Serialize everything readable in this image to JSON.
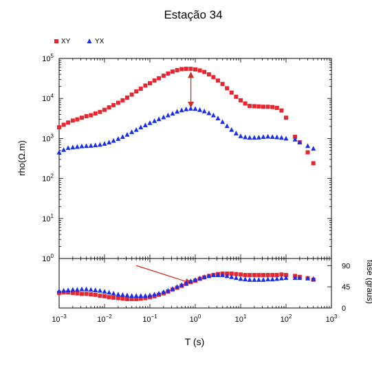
{
  "chart_data": [
    {
      "type": "scatter",
      "panel": "resistivity",
      "title": "Estação 34",
      "xlabel": "T (s)",
      "ylabel": "rho(Ω.m)",
      "xscale": "log",
      "yscale": "log",
      "xlim": [
        0.001,
        1000
      ],
      "ylim": [
        1,
        100000
      ],
      "grid": false,
      "legend_position": "top-left, above plot",
      "y_ticks": [
        1,
        10,
        100,
        1000,
        10000,
        100000
      ],
      "y_tick_labels": [
        {
          "base": "10",
          "exp": "0"
        },
        {
          "base": "10",
          "exp": "1"
        },
        {
          "base": "10",
          "exp": "2"
        },
        {
          "base": "10",
          "exp": "3"
        },
        {
          "base": "10",
          "exp": "4"
        },
        {
          "base": "10",
          "exp": "5"
        }
      ],
      "annotations": [
        {
          "kind": "double-arrow",
          "x": 0.8,
          "y_from": 6000,
          "y_to": 45000,
          "color": "#c83228"
        }
      ],
      "series": [
        {
          "name": "XY",
          "marker": "square",
          "color": "#e8262f",
          "x": [
            0.001,
            0.00126,
            0.00158,
            0.002,
            0.00251,
            0.00316,
            0.00398,
            0.00501,
            0.0063,
            0.00794,
            0.01,
            0.0126,
            0.0158,
            0.02,
            0.0251,
            0.0316,
            0.0398,
            0.0501,
            0.063,
            0.0794,
            0.1,
            0.126,
            0.158,
            0.2,
            0.251,
            0.316,
            0.398,
            0.501,
            0.63,
            0.794,
            1,
            1.26,
            1.58,
            2,
            2.51,
            3.16,
            3.98,
            5.01,
            6.3,
            7.94,
            10,
            12.6,
            15.8,
            20,
            25.1,
            31.6,
            39.8,
            50.1,
            63,
            79.4,
            100,
            158,
            200,
            300,
            400
          ],
          "y": [
            1900,
            2200,
            2500,
            2800,
            3000,
            3300,
            3600,
            3800,
            4200,
            4600,
            5200,
            6000,
            6800,
            7800,
            9000,
            10500,
            12500,
            15000,
            17500,
            21000,
            24000,
            28000,
            32000,
            37000,
            42000,
            47000,
            51000,
            54000,
            55000,
            55000,
            53000,
            50000,
            46000,
            40000,
            34000,
            28000,
            23000,
            18000,
            14000,
            11000,
            9000,
            7500,
            6500,
            6400,
            6300,
            6200,
            6200,
            6100,
            5800,
            5000,
            3300,
            1100,
            800,
            450,
            240
          ]
        },
        {
          "name": "YX",
          "marker": "triangle",
          "color": "#1a2fe6",
          "x": [
            0.001,
            0.00126,
            0.00158,
            0.002,
            0.00251,
            0.00316,
            0.00398,
            0.00501,
            0.0063,
            0.00794,
            0.01,
            0.0126,
            0.0158,
            0.02,
            0.0251,
            0.0316,
            0.0398,
            0.0501,
            0.063,
            0.0794,
            0.1,
            0.126,
            0.158,
            0.2,
            0.251,
            0.316,
            0.398,
            0.501,
            0.63,
            0.794,
            1,
            1.26,
            1.58,
            2,
            2.51,
            3.16,
            3.98,
            5.01,
            6.3,
            7.94,
            10,
            12.6,
            15.8,
            20,
            25.1,
            31.6,
            39.8,
            50.1,
            63,
            79.4,
            100,
            158,
            200,
            300,
            400
          ],
          "y": [
            450,
            520,
            580,
            600,
            620,
            640,
            650,
            660,
            680,
            700,
            740,
            800,
            880,
            980,
            1100,
            1250,
            1450,
            1650,
            1900,
            2150,
            2450,
            2750,
            3050,
            3400,
            3800,
            4200,
            4700,
            5100,
            5400,
            5600,
            5500,
            5200,
            4800,
            4300,
            3800,
            3200,
            2600,
            2050,
            1650,
            1350,
            1150,
            1080,
            1050,
            1050,
            1060,
            1100,
            1120,
            1100,
            1080,
            1050,
            1000,
            950,
            800,
            650,
            560
          ]
        }
      ]
    },
    {
      "type": "scatter",
      "panel": "phase",
      "xlabel": "T (s)",
      "ylabel": "fase (graus)",
      "xscale": "log",
      "xlim": [
        0.001,
        1000
      ],
      "ylim": [
        0,
        105
      ],
      "y_ticks": [
        0,
        45,
        90
      ],
      "x_ticks": [
        0.001,
        0.01,
        0.1,
        1,
        10,
        100,
        1000
      ],
      "x_tick_labels": [
        {
          "base": "10",
          "exp": "−3"
        },
        {
          "base": "10",
          "exp": "−2"
        },
        {
          "base": "10",
          "exp": "−1"
        },
        {
          "base": "10",
          "exp": "0"
        },
        {
          "base": "10",
          "exp": "1"
        },
        {
          "base": "10",
          "exp": "2"
        },
        {
          "base": "10",
          "exp": "3"
        }
      ],
      "grid": false,
      "annotations": [
        {
          "kind": "arrow",
          "x_from": 0.05,
          "y_from": 90,
          "x_to": 0.8,
          "y_to": 53,
          "color": "#c83228"
        }
      ],
      "series": [
        {
          "name": "XY",
          "marker": "square",
          "color": "#e8262f",
          "x": [
            0.001,
            0.00126,
            0.00158,
            0.002,
            0.00251,
            0.00316,
            0.00398,
            0.00501,
            0.0063,
            0.00794,
            0.01,
            0.0126,
            0.0158,
            0.02,
            0.0251,
            0.0316,
            0.0398,
            0.0501,
            0.063,
            0.0794,
            0.1,
            0.126,
            0.158,
            0.2,
            0.251,
            0.316,
            0.398,
            0.501,
            0.63,
            0.794,
            1,
            1.26,
            1.58,
            2,
            2.51,
            3.16,
            3.98,
            5.01,
            6.3,
            7.94,
            10,
            12.6,
            15.8,
            20,
            25.1,
            31.6,
            39.8,
            50.1,
            63,
            79.4,
            100,
            158,
            200,
            300,
            400
          ],
          "y": [
            32,
            33,
            33,
            32,
            31,
            30,
            30,
            29,
            28,
            26,
            25,
            23,
            22,
            21,
            20,
            19,
            19,
            19,
            20,
            21,
            23,
            25,
            28,
            31,
            35,
            39,
            43,
            47,
            51,
            55,
            58,
            62,
            65,
            68,
            70,
            72,
            73,
            73,
            73,
            72,
            71,
            70,
            70,
            70,
            70,
            70,
            70,
            70,
            70,
            71,
            70,
            68,
            66,
            63,
            60
          ]
        },
        {
          "name": "YX",
          "marker": "triangle",
          "color": "#1a2fe6",
          "x": [
            0.001,
            0.00126,
            0.00158,
            0.002,
            0.00251,
            0.00316,
            0.00398,
            0.00501,
            0.0063,
            0.00794,
            0.01,
            0.0126,
            0.0158,
            0.02,
            0.0251,
            0.0316,
            0.0398,
            0.0501,
            0.063,
            0.0794,
            0.1,
            0.126,
            0.158,
            0.2,
            0.251,
            0.316,
            0.398,
            0.501,
            0.63,
            0.794,
            1,
            1.26,
            1.58,
            2,
            2.51,
            3.16,
            3.98,
            5.01,
            6.3,
            7.94,
            10,
            12.6,
            15.8,
            20,
            25.1,
            31.6,
            39.8,
            50.1,
            63,
            79.4,
            100,
            158,
            200,
            300,
            400
          ],
          "y": [
            36,
            37,
            38,
            39,
            39,
            40,
            40,
            39,
            38,
            37,
            35,
            33,
            31,
            29,
            28,
            27,
            26,
            26,
            26,
            26,
            27,
            29,
            31,
            34,
            37,
            41,
            45,
            49,
            53,
            57,
            60,
            63,
            66,
            68,
            70,
            70,
            70,
            68,
            66,
            64,
            62,
            61,
            60,
            60,
            60,
            60,
            61,
            61,
            62,
            63,
            64,
            64,
            64,
            63,
            62
          ]
        }
      ]
    }
  ]
}
